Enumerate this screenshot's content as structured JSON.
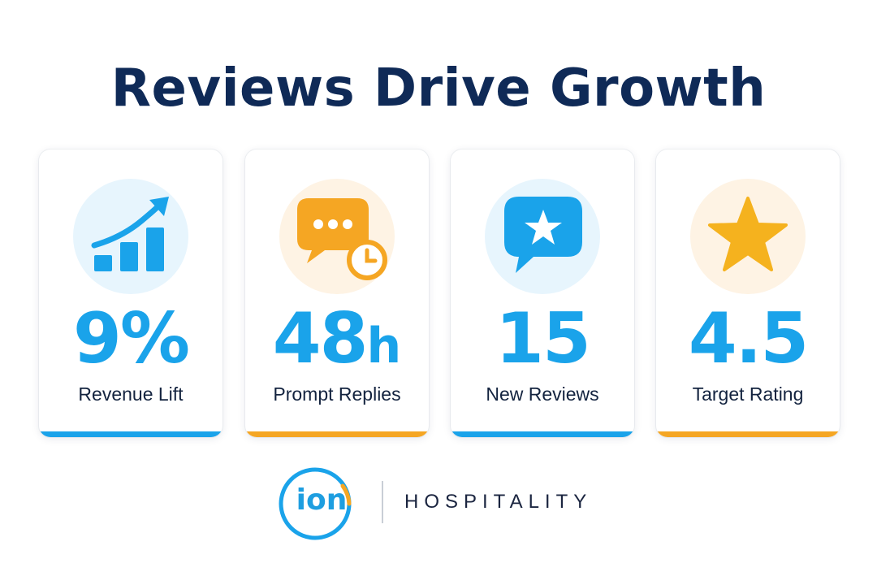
{
  "title": "Reviews Drive Growth",
  "colors": {
    "navy": "#0f2a57",
    "blue": "#1aa3ea",
    "orange": "#f5a623",
    "card_bg": "#ffffff"
  },
  "cards": [
    {
      "value": "9%",
      "label": "Revenue Lift",
      "icon": "rising-bar-chart-icon",
      "accent": "#1aa3ea",
      "circle": "#e7f5fd"
    },
    {
      "value": "48",
      "unit": "h",
      "label": "Prompt Replies",
      "icon": "chat-bubble-clock-icon",
      "accent": "#f5a623",
      "circle": "#fef3e4"
    },
    {
      "value": "15",
      "label": "New Reviews",
      "icon": "star-message-icon",
      "accent": "#1aa3ea",
      "circle": "#e7f5fd"
    },
    {
      "value": "4.5",
      "label": "Target Rating",
      "icon": "star-icon",
      "accent": "#f5a623",
      "circle": "#fef3e4"
    }
  ],
  "brand": {
    "logo_text": "ion",
    "name": "HOSPITALITY"
  }
}
